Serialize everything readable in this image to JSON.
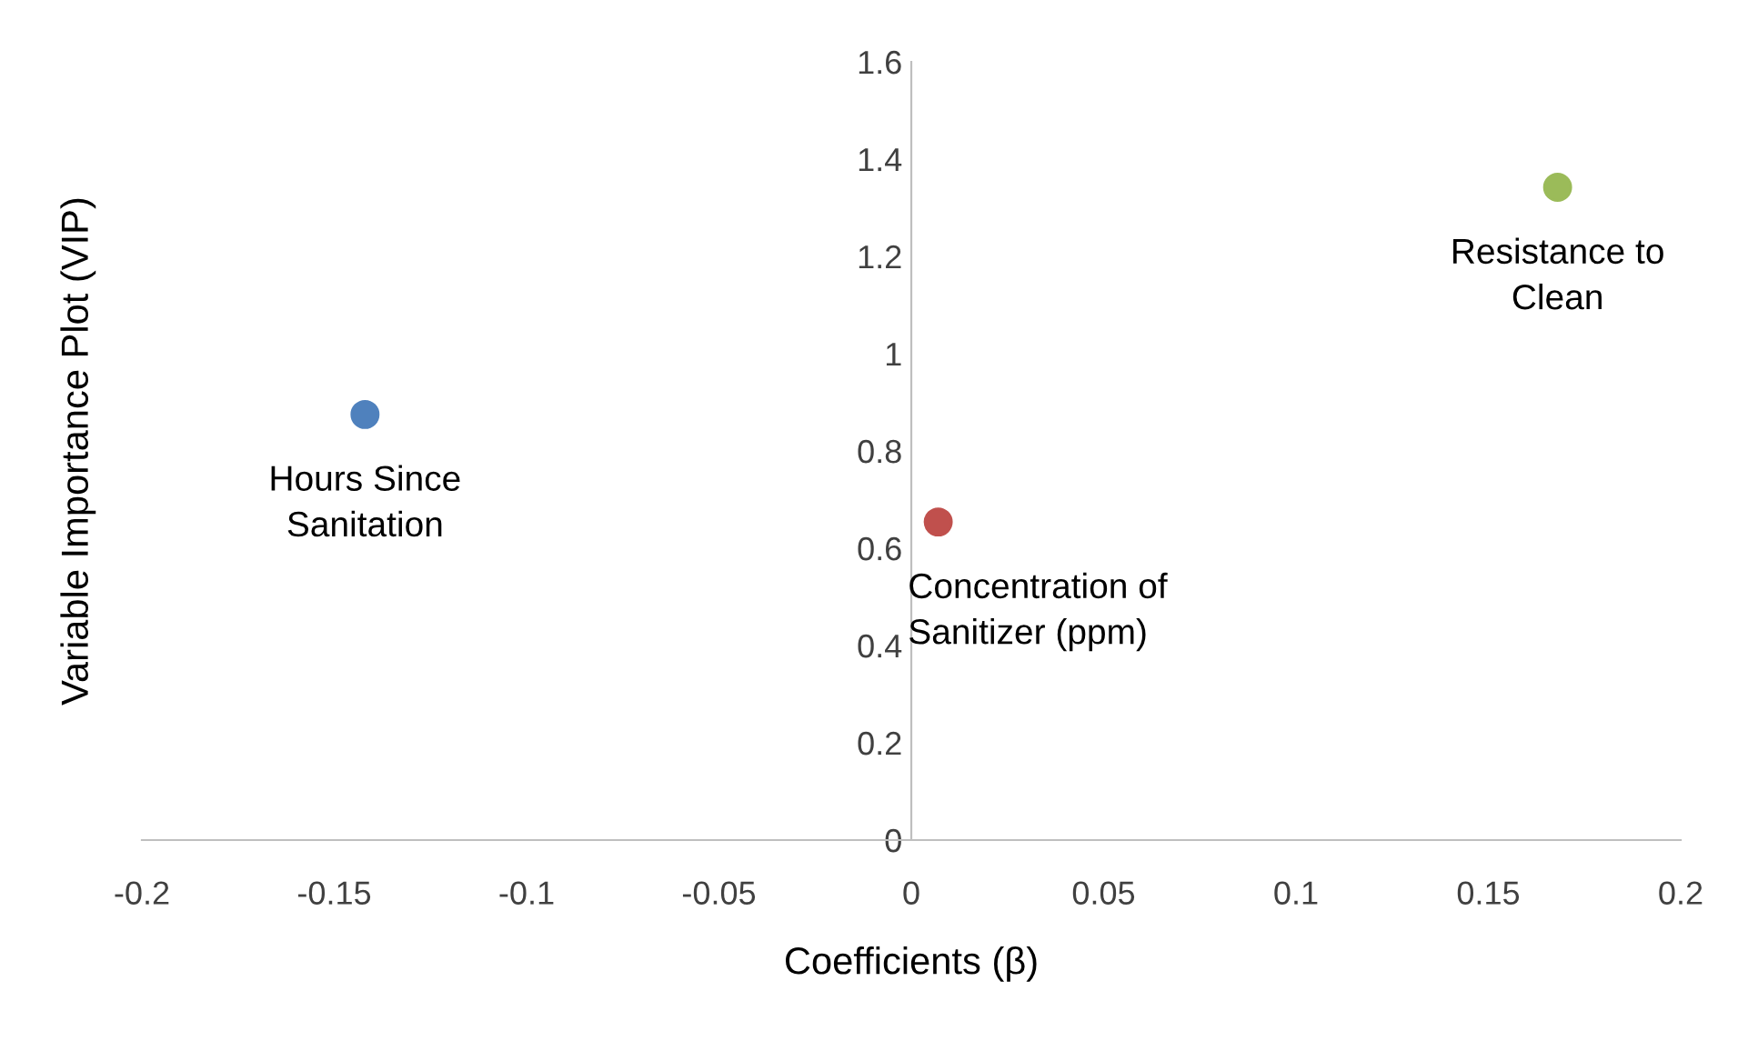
{
  "chart_data": {
    "type": "scatter",
    "xlabel": "Coefficients (β)",
    "ylabel": "Variable Importance Plot (VIP)",
    "x": [
      -0.142,
      0.007,
      0.168
    ],
    "values": [
      0.875,
      0.654,
      1.342
    ],
    "colors": [
      "#4f81bd",
      "#c0504d",
      "#9bbb59"
    ],
    "marker": "circle",
    "xlim": [
      -0.2,
      0.2
    ],
    "xticks": [
      -0.2,
      -0.15,
      -0.1,
      -0.05,
      0,
      0.05,
      0.1,
      0.15,
      0.2
    ],
    "ylim": [
      0,
      1.6
    ],
    "yticks": [
      0,
      0.2,
      0.4,
      0.6,
      0.8,
      1,
      1.2,
      1.4,
      1.6
    ],
    "annotations": [
      {
        "text": "Hours Since\nSanitation",
        "x": -0.142,
        "y": 0.875
      },
      {
        "text": "Concentration of\nSanitizer (ppm)",
        "x": 0.007,
        "y": 0.654
      },
      {
        "text": "Resistance to\nClean",
        "x": 0.168,
        "y": 1.342
      }
    ]
  }
}
